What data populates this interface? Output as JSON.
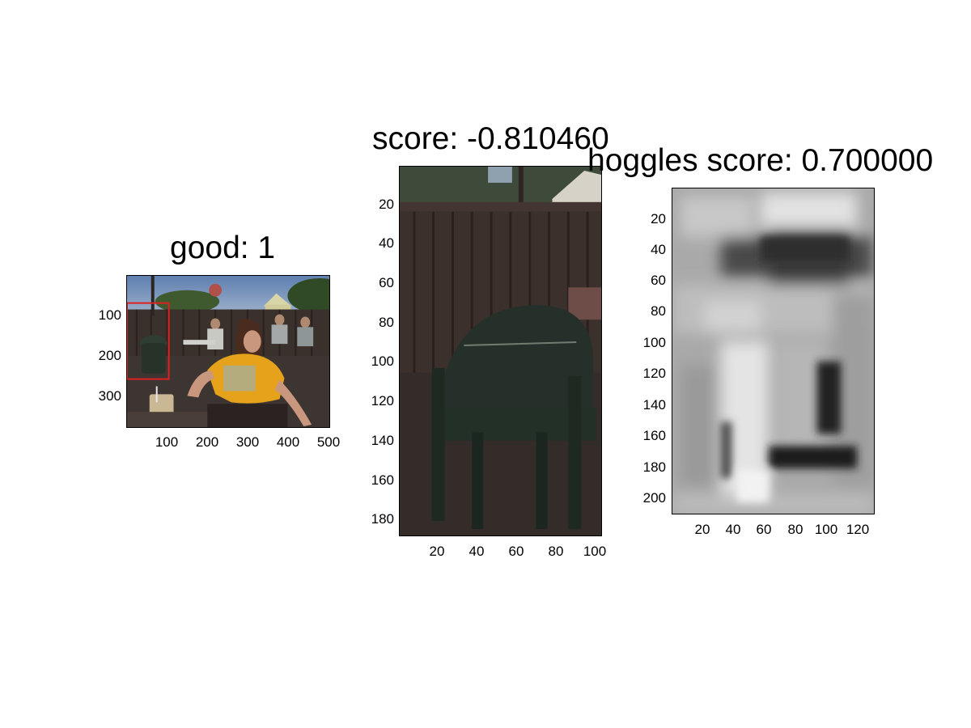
{
  "panels": [
    {
      "title": "good: 1",
      "yticks": [
        "100",
        "200",
        "300"
      ],
      "xticks": [
        "100",
        "200",
        "300",
        "400",
        "500"
      ]
    },
    {
      "title": "score: -0.810460",
      "yticks": [
        "20",
        "40",
        "60",
        "80",
        "100",
        "120",
        "140",
        "160",
        "180"
      ],
      "xticks": [
        "20",
        "40",
        "60",
        "80",
        "100"
      ]
    },
    {
      "title": "hoggles score: 0.700000",
      "yticks": [
        "20",
        "40",
        "60",
        "80",
        "100",
        "120",
        "140",
        "160",
        "180",
        "200"
      ],
      "xticks": [
        "20",
        "40",
        "60",
        "80",
        "100",
        "120"
      ]
    }
  ],
  "colors": {
    "detection_box": "#e02020"
  }
}
